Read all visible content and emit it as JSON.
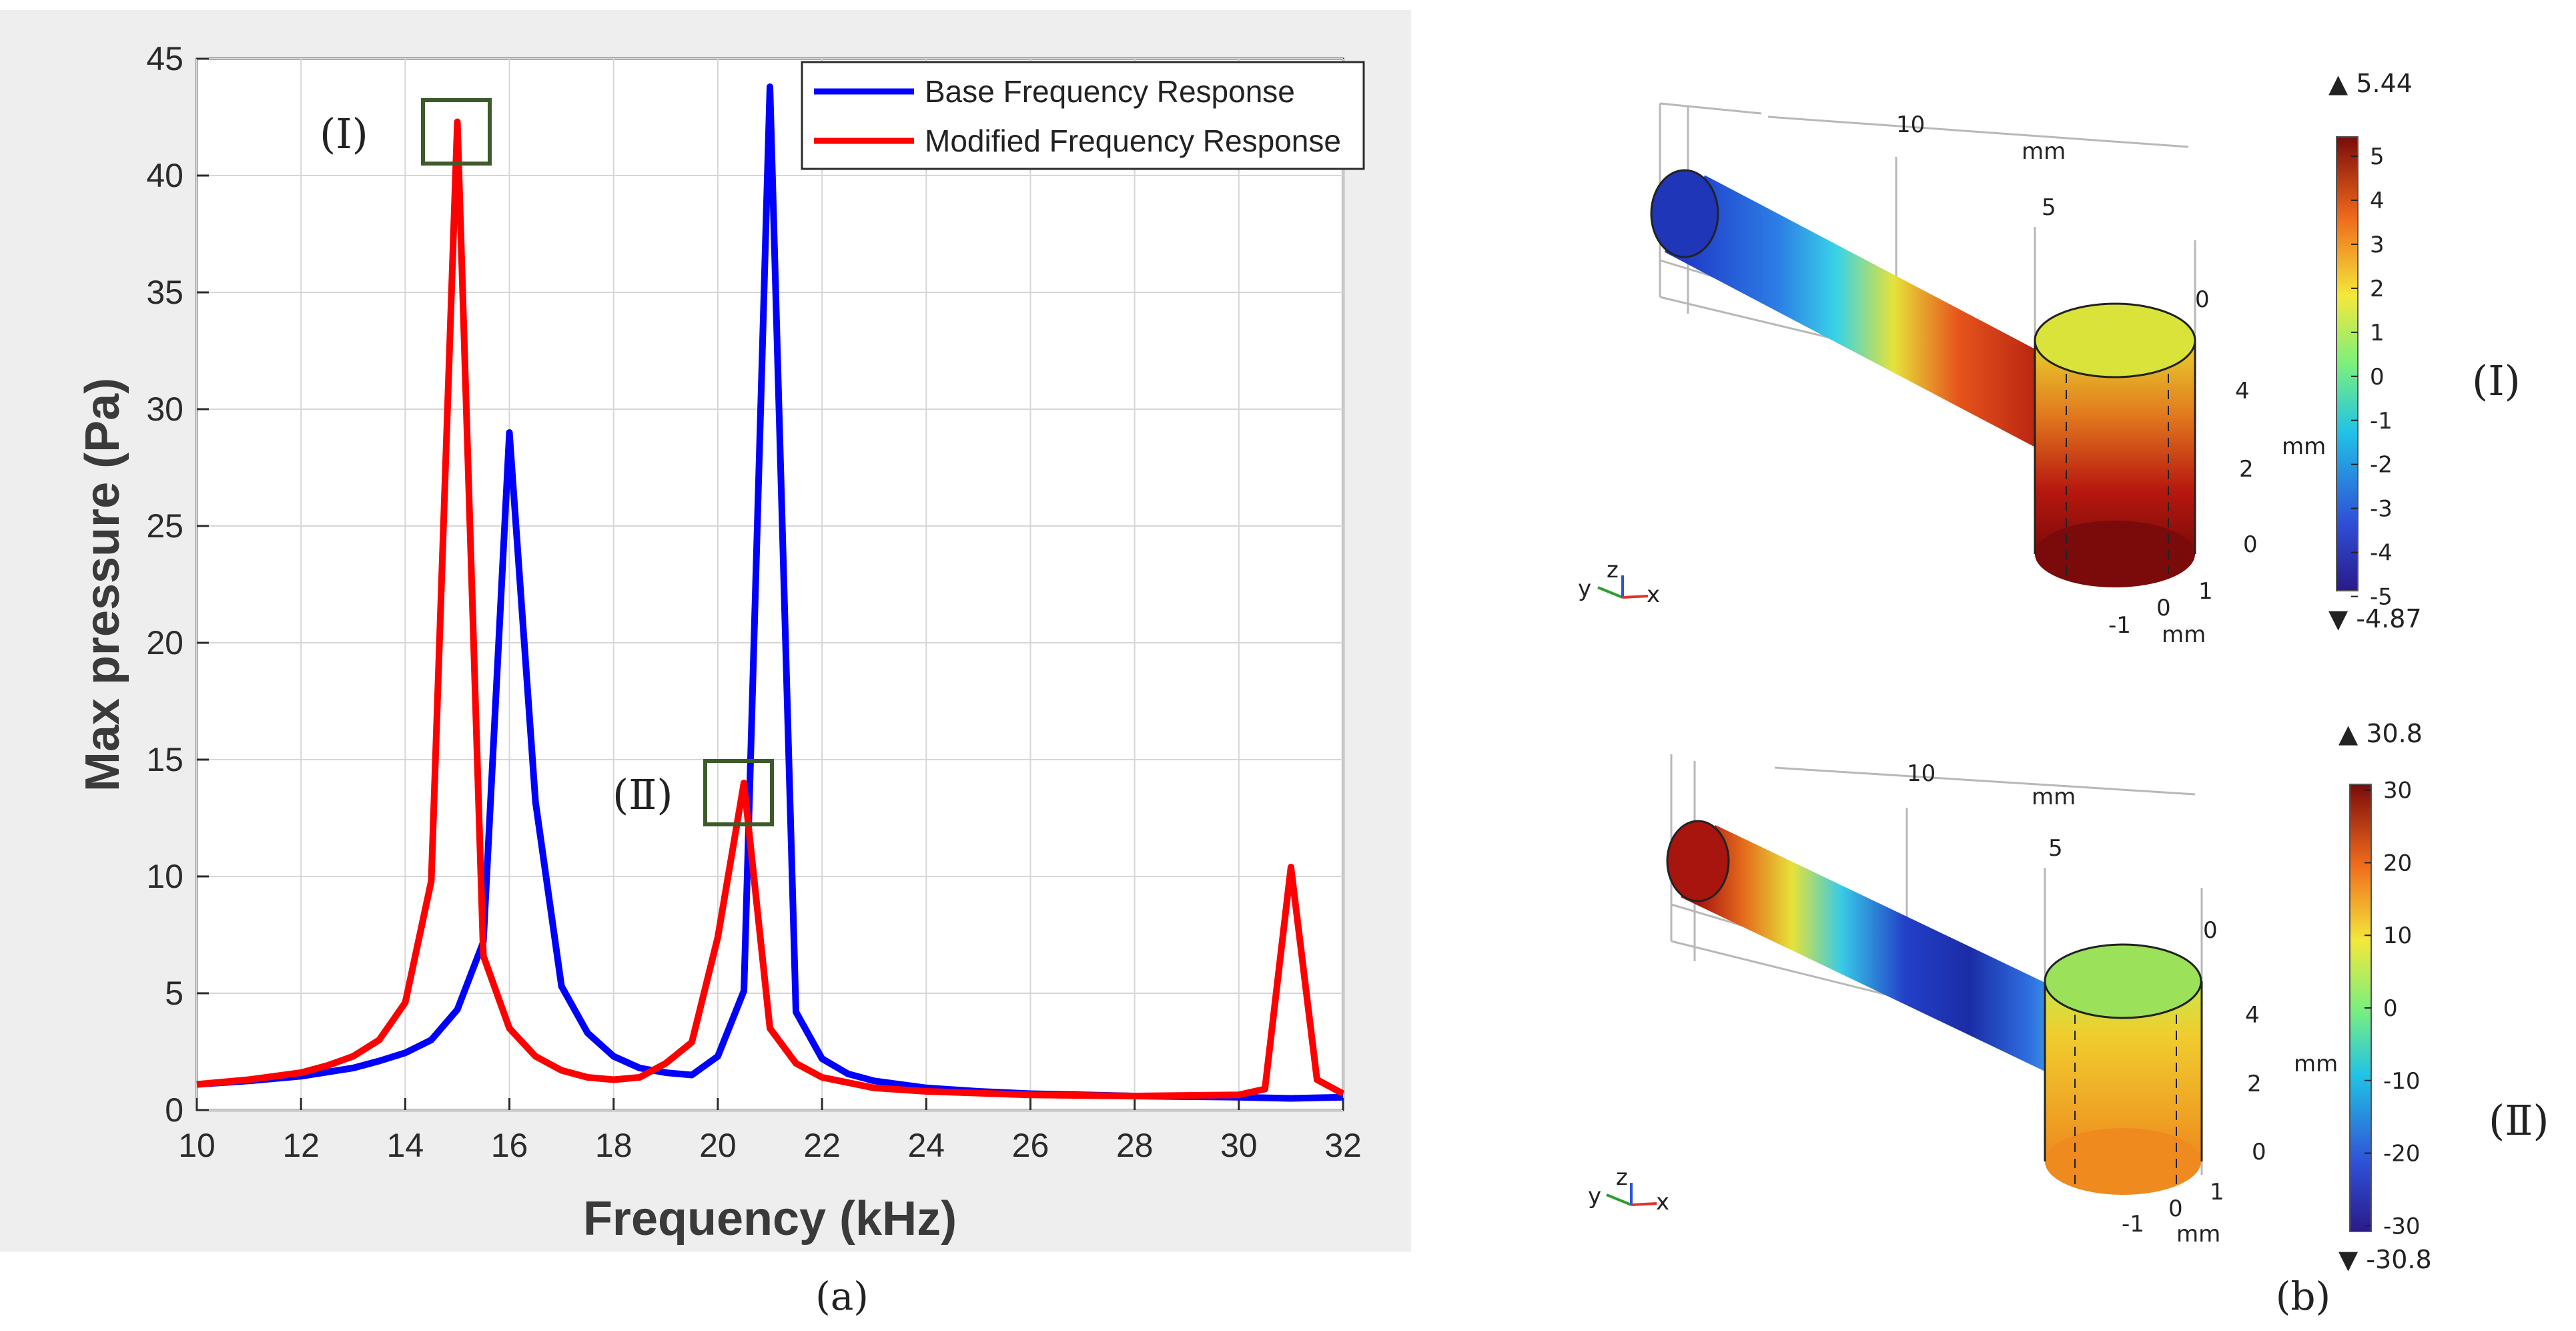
{
  "chart_data": [
    {
      "type": "line",
      "panel": "(a)",
      "title": "",
      "xlabel": "Frequency (kHz)",
      "ylabel": "Max pressure (Pa)",
      "xlim": [
        10,
        32
      ],
      "ylim": [
        0,
        45
      ],
      "xticks": [
        "10",
        "12",
        "14",
        "16",
        "18",
        "20",
        "22",
        "24",
        "26",
        "28",
        "30",
        "32"
      ],
      "yticks": [
        "0",
        "5",
        "10",
        "15",
        "20",
        "25",
        "30",
        "35",
        "40",
        "45"
      ],
      "grid": true,
      "legend_position": "top-right",
      "series": [
        {
          "name": "Base Frequency Response",
          "color": "#0000ff",
          "x": [
            10,
            11,
            12,
            13,
            13.5,
            14,
            14.5,
            15,
            15.5,
            16,
            16.5,
            17,
            17.5,
            18,
            18.5,
            19,
            19.5,
            20,
            20.5,
            21,
            21.5,
            22,
            22.5,
            23,
            24,
            25,
            26,
            28,
            30,
            31,
            32
          ],
          "y": [
            1.1,
            1.25,
            1.45,
            1.8,
            2.1,
            2.45,
            3.0,
            4.3,
            7.2,
            29.0,
            13.2,
            5.3,
            3.3,
            2.3,
            1.8,
            1.6,
            1.5,
            2.3,
            5.1,
            43.8,
            4.2,
            2.2,
            1.55,
            1.25,
            0.95,
            0.8,
            0.7,
            0.6,
            0.55,
            0.5,
            0.55
          ]
        },
        {
          "name": "Modified Frequency Response",
          "color": "#ff0000",
          "x": [
            10,
            11,
            12,
            12.5,
            13,
            13.5,
            14,
            14.5,
            15,
            15.5,
            16,
            16.5,
            17,
            17.5,
            18,
            18.5,
            19,
            19.5,
            20,
            20.5,
            21,
            21.5,
            22,
            23,
            24,
            26,
            28,
            30,
            30.5,
            31,
            31.5,
            32
          ],
          "y": [
            1.1,
            1.3,
            1.6,
            1.9,
            2.3,
            3.0,
            4.6,
            9.8,
            42.3,
            6.6,
            3.5,
            2.3,
            1.7,
            1.4,
            1.3,
            1.4,
            2.0,
            2.9,
            7.4,
            14.0,
            3.5,
            2.0,
            1.4,
            0.95,
            0.8,
            0.65,
            0.6,
            0.65,
            0.9,
            10.4,
            1.3,
            0.7
          ]
        }
      ],
      "annotations": [
        {
          "label": "(Ⅰ)",
          "x": 15,
          "y": 42.3
        },
        {
          "label": "(Ⅱ)",
          "x": 20.5,
          "y": 14.0
        }
      ]
    },
    {
      "type": "heatmap",
      "panel": "(b)",
      "subplots": [
        {
          "label": "(Ⅰ)",
          "colorbar_max": "5.44",
          "colorbar_min": "-4.87",
          "colorbar_ticks": [
            "5",
            "4",
            "3",
            "2",
            "1",
            "0",
            "-1",
            "-2",
            "-3",
            "-4",
            "-5"
          ],
          "axis_labels": [
            "10",
            "mm",
            "5",
            "0",
            "4",
            "2",
            "0",
            "mm",
            "1",
            "0",
            "-1",
            "mm"
          ],
          "triad": {
            "y": "y",
            "z": "z",
            "x": "x"
          }
        },
        {
          "label": "(Ⅱ)",
          "colorbar_max": "30.8",
          "colorbar_min": "-30.8",
          "colorbar_ticks": [
            "30",
            "20",
            "10",
            "0",
            "-10",
            "-20",
            "-30"
          ],
          "axis_labels": [
            "10",
            "mm",
            "5",
            "0",
            "4",
            "2",
            "0",
            "mm",
            "1",
            "0",
            "-1",
            "mm"
          ],
          "triad": {
            "y": "y",
            "z": "z",
            "x": "x"
          }
        }
      ]
    }
  ],
  "captions": {
    "a": "(a)",
    "b": "(b)"
  },
  "colors": {
    "base": "#0000ff",
    "modified": "#ff0000",
    "marker_box": "#3c5a2a",
    "panel_bg": "#eeeeee",
    "grid": "#d6d6d6"
  }
}
